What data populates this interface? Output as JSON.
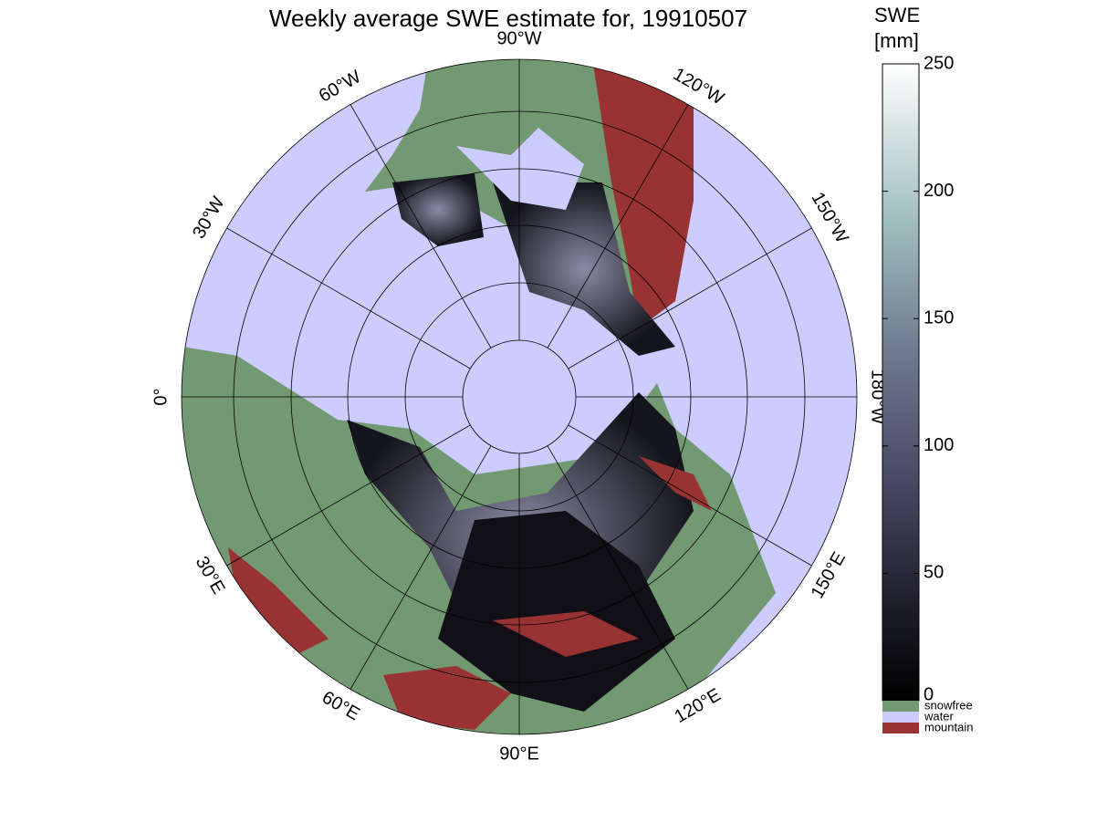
{
  "title": "Weekly average SWE estimate for, 19910507",
  "longitude_labels": [
    "90°W",
    "120°W",
    "150°W",
    "180°W",
    "150°E",
    "120°E",
    "90°E",
    "60°E",
    "30°E",
    "0°",
    "30°W",
    "60°W"
  ],
  "colorbar": {
    "title": [
      "SWE",
      "[mm]"
    ],
    "lim": [
      0,
      250
    ],
    "ticks": [
      0,
      50,
      100,
      150,
      200,
      250
    ]
  },
  "legend": [
    {
      "label": "snowfree",
      "color": "#739973"
    },
    {
      "label": "water",
      "color": "#ccccff"
    },
    {
      "label": "mountain",
      "color": "#993333"
    }
  ]
}
